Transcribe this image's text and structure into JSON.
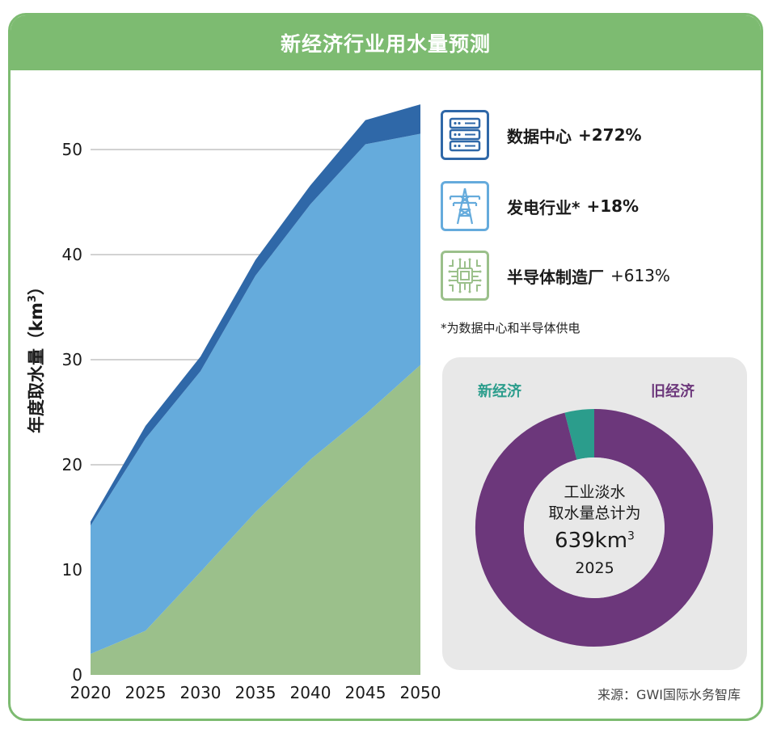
{
  "title": "新经济行业用水量预测",
  "chart_data": [
    {
      "type": "area",
      "stacked": true,
      "ylabel": "年度取水量（km",
      "ylabel_superscript": "3",
      "ylabel_close": "）",
      "ylim": [
        0,
        55
      ],
      "yticks": [
        "0",
        "10",
        "20",
        "30",
        "40",
        "50"
      ],
      "ytick_values": [
        0,
        10,
        20,
        30,
        40,
        50
      ],
      "categories": [
        "2020",
        "2025",
        "2030",
        "2035",
        "2040",
        "2045",
        "2050"
      ],
      "x_values": [
        2020,
        2025,
        2030,
        2035,
        2040,
        2045,
        2050
      ],
      "grid": true,
      "series": [
        {
          "name": "半导体制造厂",
          "color": "#9bc08b",
          "values": [
            2.0,
            4.2,
            9.8,
            15.5,
            20.5,
            24.8,
            29.5
          ]
        },
        {
          "name": "发电行业*",
          "color": "#65abdc",
          "values": [
            12.2,
            18.3,
            19.1,
            22.5,
            24.3,
            25.7,
            22.0
          ]
        },
        {
          "name": "数据中心",
          "color": "#2f68a8",
          "values": [
            0.4,
            1.2,
            1.4,
            1.5,
            1.8,
            2.3,
            2.8
          ]
        }
      ]
    },
    {
      "type": "pie",
      "donut": true,
      "categories": [
        "新经济",
        "旧经济"
      ],
      "values": [
        4,
        96
      ],
      "colors": [
        "#2b9d8c",
        "#6c377b"
      ]
    }
  ],
  "legend": [
    {
      "label": "数据中心",
      "pct": "+272%",
      "icon": "server-rack-icon",
      "color": "#2f68a8"
    },
    {
      "label": "发电行业*",
      "pct": "+18%",
      "icon": "power-tower-icon",
      "color": "#65abdc"
    },
    {
      "label": "半导体制造厂",
      "pct": "+613%",
      "icon": "microchip-icon",
      "color": "#9bc08b"
    }
  ],
  "footnote": "*为数据中心和半导体供电",
  "donut": {
    "new_label": "新经济",
    "old_label": "旧经济",
    "center_line1": "工业淡水",
    "center_line2": "取水量总计为",
    "total": "639km",
    "total_sup": "3",
    "year": "2025"
  },
  "source": "来源：GWI国际水务智库",
  "colors": {
    "header": "#7dbb71",
    "new_economy": "#2b9d8c",
    "old_economy": "#6c377b"
  }
}
